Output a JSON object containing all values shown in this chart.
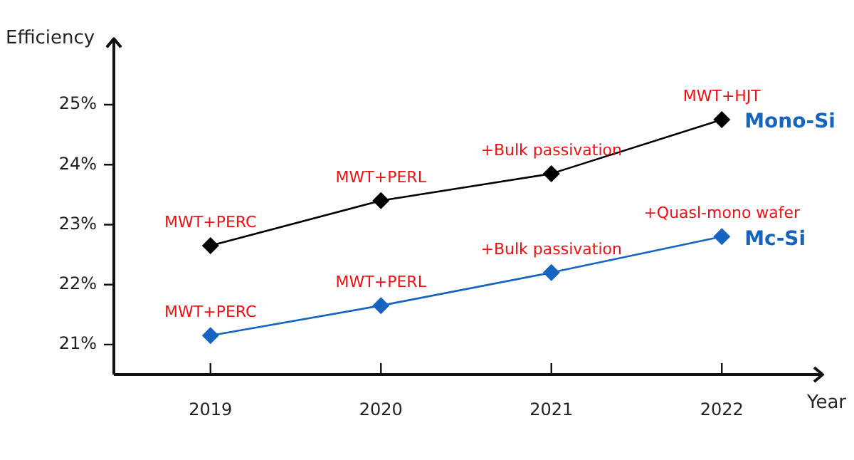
{
  "chart_data": {
    "type": "line",
    "ylabel": "Efficiency",
    "xlabel": "Year",
    "categories": [
      "2019",
      "2020",
      "2021",
      "2022"
    ],
    "series": [
      {
        "name": "Mono-Si",
        "color": "#000000",
        "values": [
          22.65,
          23.4,
          23.85,
          24.75
        ]
      },
      {
        "name": "Mc-Si",
        "color": "#1565c0",
        "values": [
          21.15,
          21.65,
          22.2,
          22.8
        ]
      }
    ],
    "ylim": [
      20.5,
      26.1
    ],
    "yticks": [
      {
        "value": 21,
        "label": "21%"
      },
      {
        "value": 22,
        "label": "22%"
      },
      {
        "value": 23,
        "label": "23%"
      },
      {
        "value": 24,
        "label": "24%"
      },
      {
        "value": 25,
        "label": "25%"
      }
    ],
    "annotations": [
      {
        "text": "MWT+PERC",
        "x": "2019",
        "y": 22.65
      },
      {
        "text": "MWT+PERL",
        "x": "2020",
        "y": 23.4
      },
      {
        "text": "+Bulk passivation",
        "x": "2021",
        "y": 23.85
      },
      {
        "text": "MWT+HJT",
        "x": "2022",
        "y": 24.75
      },
      {
        "text": "MWT+PERC",
        "x": "2019",
        "y": 21.15
      },
      {
        "text": "MWT+PERL",
        "x": "2020",
        "y": 21.65
      },
      {
        "text": "+Bulk passivation",
        "x": "2021",
        "y": 22.2
      },
      {
        "text": "+Quasl-mono wafer",
        "x": "2022",
        "y": 22.8
      }
    ],
    "grid": false,
    "legend": false,
    "marker": "diamond",
    "line_style": "solid"
  }
}
